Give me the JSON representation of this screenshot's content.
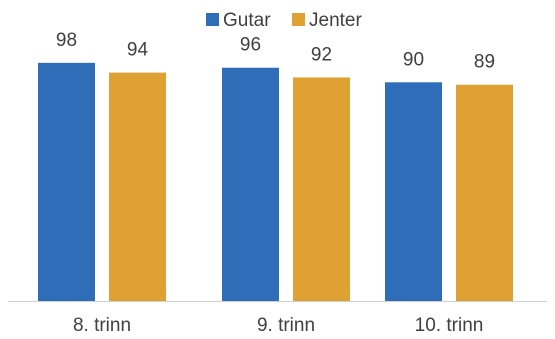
{
  "chart_data": {
    "type": "bar",
    "categories": [
      "8. trinn",
      "9. trinn",
      "10. trinn"
    ],
    "series": [
      {
        "name": "Gutar",
        "values": [
          98,
          96,
          90
        ],
        "color": "#2E6DB8"
      },
      {
        "name": "Jenter",
        "values": [
          94,
          92,
          89
        ],
        "color": "#E0A134"
      }
    ],
    "title": "",
    "xlabel": "",
    "ylabel": "",
    "ylim": [
      0,
      100
    ],
    "grid": false,
    "legend_position": "top-center",
    "data_labels": true
  },
  "colors": {
    "text": "#404040",
    "axis": "#d0d0d0"
  }
}
